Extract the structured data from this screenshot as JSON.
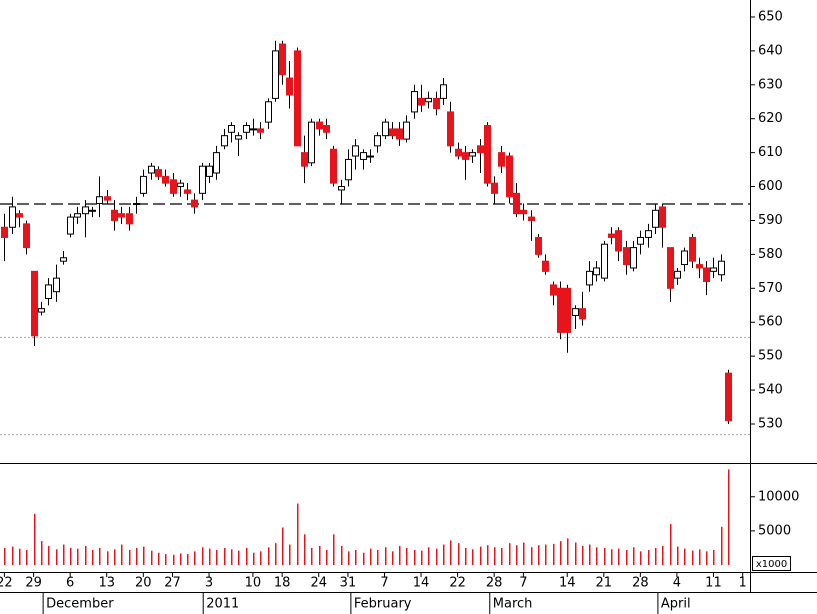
{
  "chart_data": {
    "type": "candlestick",
    "x": [
      0,
      1,
      2,
      3,
      4,
      5,
      6,
      7,
      8,
      9,
      10,
      11,
      12,
      13,
      14,
      15,
      16,
      17,
      18,
      19,
      20,
      21,
      22,
      23,
      24,
      25,
      26,
      27,
      28,
      29,
      30,
      31,
      32,
      33,
      34,
      35,
      36,
      37,
      38,
      39,
      40,
      41,
      42,
      43,
      44,
      45,
      46,
      47,
      48,
      49,
      50,
      51,
      52,
      53,
      54,
      55,
      56,
      57,
      58,
      59,
      60,
      61,
      62,
      63,
      64,
      65,
      66,
      67,
      68,
      69,
      70,
      71,
      72,
      73,
      74,
      75,
      76,
      77,
      78,
      79,
      80,
      81,
      82,
      83,
      84,
      85,
      86,
      87,
      88,
      89,
      90,
      91,
      92,
      93,
      94,
      95,
      96,
      97,
      98,
      99
    ],
    "open": [
      588,
      588,
      592,
      589,
      575,
      563,
      567,
      569,
      578,
      586,
      591,
      592,
      593,
      595,
      597,
      593,
      592,
      592,
      595,
      598,
      604,
      605,
      603,
      602,
      600,
      599,
      596,
      598,
      603,
      604,
      612,
      616,
      614,
      616,
      617,
      617,
      619,
      626,
      642,
      632,
      640,
      610,
      607,
      619,
      618,
      611,
      599,
      602,
      609,
      608,
      609,
      612,
      615,
      617,
      617,
      614,
      622,
      626,
      625,
      626,
      626,
      622,
      611,
      610,
      609,
      612,
      618,
      601,
      610,
      609,
      598,
      593,
      591,
      585,
      578,
      571,
      570,
      570,
      562,
      564,
      571,
      574,
      573,
      586,
      587,
      582,
      576,
      583,
      585,
      588,
      594,
      582,
      573,
      577,
      585,
      577,
      576,
      575,
      574,
      545
    ],
    "high": [
      592,
      597,
      593,
      590,
      575,
      566,
      573,
      577,
      581,
      592,
      594,
      596,
      594,
      603,
      599,
      596,
      594,
      594,
      597,
      605,
      607,
      606,
      605,
      604,
      602,
      601,
      598,
      607,
      607,
      612,
      617,
      619,
      616,
      619,
      620,
      619,
      626,
      643,
      643,
      637,
      641,
      615,
      620,
      620,
      620,
      612,
      602,
      611,
      614,
      611,
      611,
      616,
      620,
      619,
      619,
      621,
      630,
      630,
      628,
      628,
      632,
      625,
      613,
      612,
      611,
      614,
      619,
      603,
      612,
      610,
      601,
      595,
      593,
      586,
      580,
      572,
      572,
      571,
      565,
      569,
      578,
      578,
      584,
      588,
      588,
      584,
      584,
      587,
      589,
      595,
      595,
      582,
      576,
      582,
      586,
      579,
      578,
      579,
      580,
      546
    ],
    "low": [
      578,
      586,
      588,
      580,
      553,
      562,
      565,
      566,
      577,
      585,
      589,
      585,
      591,
      591,
      595,
      587,
      589,
      587,
      592,
      597,
      602,
      602,
      600,
      597,
      597,
      596,
      592,
      596,
      601,
      602,
      611,
      613,
      609,
      614,
      615,
      614,
      617,
      625,
      630,
      623,
      612,
      601,
      606,
      615,
      614,
      600,
      595,
      600,
      605,
      605,
      607,
      610,
      614,
      614,
      612,
      613,
      620,
      622,
      623,
      621,
      624,
      610,
      608,
      602,
      607,
      604,
      600,
      595,
      604,
      595,
      591,
      590,
      584,
      579,
      574,
      565,
      555,
      551,
      558,
      559,
      569,
      572,
      572,
      583,
      578,
      574,
      575,
      580,
      582,
      586,
      582,
      566,
      571,
      575,
      576,
      573,
      568,
      573,
      572,
      530
    ],
    "close": [
      585,
      594,
      591,
      582,
      556,
      564,
      571,
      573,
      579,
      591,
      592,
      594,
      593,
      597,
      596,
      590,
      591,
      589,
      595,
      603,
      606,
      603,
      601,
      598,
      601,
      598,
      594,
      606,
      606,
      610,
      615,
      618,
      615,
      618,
      617,
      616,
      625,
      640,
      633,
      627,
      612,
      606,
      619,
      617,
      616,
      601,
      600,
      608,
      612,
      610,
      609,
      615,
      619,
      615,
      614,
      619,
      628,
      624,
      626,
      623,
      630,
      612,
      609,
      608,
      610,
      610,
      601,
      598,
      606,
      597,
      592,
      592,
      590,
      580,
      575,
      568,
      557,
      557,
      564,
      561,
      575,
      576,
      583,
      585,
      581,
      577,
      582,
      585,
      587,
      593,
      588,
      570,
      575,
      581,
      578,
      576,
      572,
      576,
      578,
      531
    ],
    "up_color": "#ffffff",
    "down_color": "#e8141c",
    "outline_color": "#000000",
    "ylim": [
      518.5,
      655
    ],
    "yticks": [
      530,
      540,
      550,
      560,
      570,
      580,
      590,
      600,
      610,
      620,
      630,
      640,
      650
    ],
    "xlim": [
      -0.6,
      102
    ],
    "hlines": [
      {
        "value": 595,
        "style": "dashed"
      },
      {
        "value": 555.7,
        "style": "dotted"
      },
      {
        "value": 527,
        "style": "dotted"
      }
    ],
    "xticks": [
      {
        "value": 0,
        "label": "22"
      },
      {
        "value": 4,
        "label": "29"
      },
      {
        "value": 9,
        "label": "6"
      },
      {
        "value": 14,
        "label": "13"
      },
      {
        "value": 19,
        "label": "20"
      },
      {
        "value": 23,
        "label": "27"
      },
      {
        "value": 28,
        "label": "3"
      },
      {
        "value": 34,
        "label": "10"
      },
      {
        "value": 38,
        "label": "18"
      },
      {
        "value": 43,
        "label": "24"
      },
      {
        "value": 47,
        "label": "31"
      },
      {
        "value": 52,
        "label": "7"
      },
      {
        "value": 57,
        "label": "14"
      },
      {
        "value": 62,
        "label": "22"
      },
      {
        "value": 67,
        "label": "28"
      },
      {
        "value": 71,
        "label": "7"
      },
      {
        "value": 77,
        "label": "14"
      },
      {
        "value": 82,
        "label": "21"
      },
      {
        "value": 87,
        "label": "28"
      },
      {
        "value": 92,
        "label": "4"
      },
      {
        "value": 97,
        "label": "11"
      },
      {
        "value": 101,
        "label": "1"
      }
    ],
    "month_ticks": [
      {
        "value": 5.3,
        "label": "December"
      },
      {
        "value": 27.2,
        "label": "2011"
      },
      {
        "value": 47.4,
        "label": "February"
      },
      {
        "value": 66.4,
        "label": "March"
      },
      {
        "value": 89.4,
        "label": "April"
      }
    ],
    "volume": {
      "values": [
        2500,
        2700,
        2400,
        2200,
        7500,
        3500,
        2800,
        2300,
        3000,
        2500,
        2400,
        2800,
        2200,
        2500,
        2000,
        2300,
        3000,
        2200,
        2500,
        2700,
        2100,
        1800,
        1600,
        1500,
        1700,
        1600,
        2000,
        2600,
        2400,
        2200,
        2500,
        2300,
        2100,
        2500,
        1800,
        2000,
        2600,
        3200,
        5500,
        3000,
        9000,
        4500,
        2500,
        2800,
        2200,
        4500,
        2800,
        2000,
        2200,
        1800,
        2400,
        2200,
        2600,
        2000,
        2800,
        2500,
        2200,
        2100,
        2600,
        2400,
        3000,
        3600,
        3200,
        2500,
        2300,
        2700,
        2900,
        2600,
        2500,
        3200,
        2900,
        3300,
        2600,
        2900,
        3000,
        3100,
        3500,
        3900,
        3300,
        2800,
        3000,
        2600,
        2500,
        2300,
        2400,
        2200,
        2600,
        2000,
        2200,
        2500,
        2800,
        6000,
        2700,
        2400,
        2100,
        2300,
        2000,
        2200,
        5600,
        14000
      ],
      "color": "#e8141c",
      "ylim": [
        0,
        14800
      ],
      "yticks": [
        5000,
        10000
      ],
      "unit_label": "x1000"
    }
  }
}
